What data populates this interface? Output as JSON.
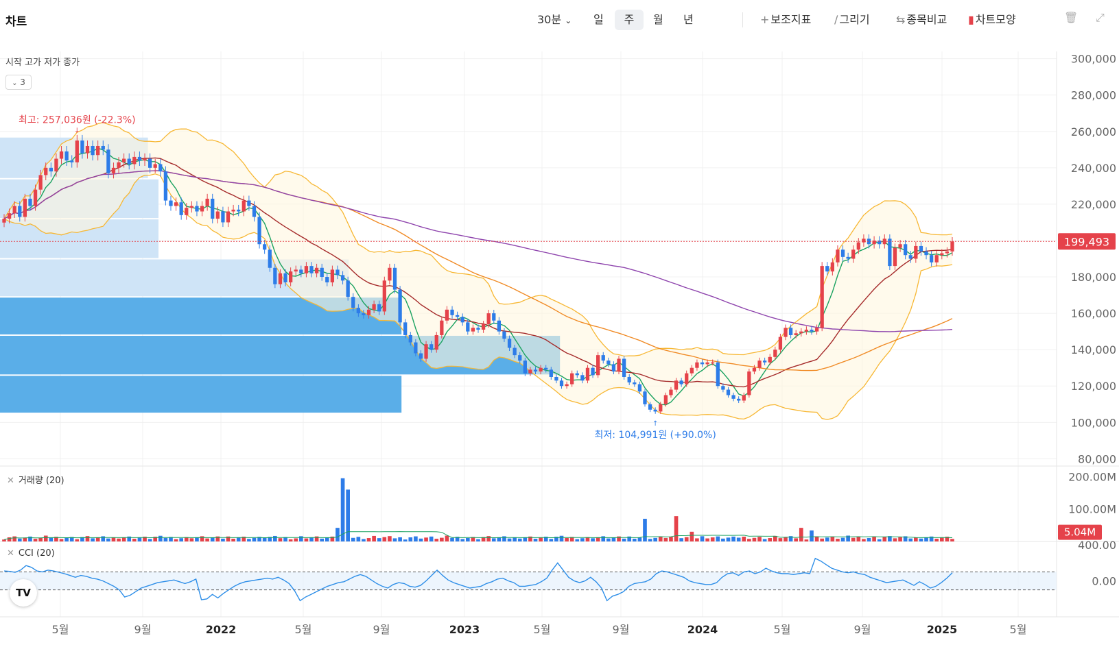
{
  "header": {
    "title": "차트",
    "interval": "30분",
    "periods": [
      "일",
      "주",
      "월",
      "년"
    ],
    "active_period": "주",
    "tools": [
      {
        "icon": "plus-icon",
        "label": "보조지표"
      },
      {
        "icon": "pencil-icon",
        "label": "그리기"
      },
      {
        "icon": "compare-arrows-icon",
        "label": "종목비교"
      },
      {
        "icon": "candle-style-icon",
        "label": "차트모양"
      }
    ]
  },
  "legend": {
    "ohlc_label": "시작 고가 저가 종가",
    "indicator_count": "3"
  },
  "chart_data": [
    {
      "type": "candlestick",
      "title": "",
      "ylim": [
        76000,
        304000
      ],
      "y_ticks": [
        "300,000",
        "280,000",
        "260,000",
        "240,000",
        "220,000",
        "200,000",
        "180,000",
        "160,000",
        "140,000",
        "120,000",
        "100,000",
        "80,000"
      ],
      "x_ticks": [
        "5월",
        "9월",
        "2022",
        "5월",
        "9월",
        "2023",
        "5월",
        "9월",
        "2024",
        "5월",
        "9월",
        "2025",
        "5월"
      ],
      "x_range": [
        "2021-01",
        "2025-06"
      ],
      "last_price": "199,493",
      "high_annotation": "최고: 257,036원 (-22.3%)",
      "low_annotation": "최저: 104,991원 (+90.0%)",
      "closes": [
        212000,
        215000,
        219000,
        213000,
        223000,
        219000,
        228000,
        236000,
        240000,
        238000,
        245000,
        249000,
        244000,
        243000,
        255000,
        248000,
        252000,
        247000,
        252000,
        250000,
        237000,
        240000,
        243000,
        245000,
        242000,
        246000,
        244000,
        245000,
        240000,
        242000,
        238000,
        222000,
        219000,
        221000,
        214000,
        218000,
        219000,
        216000,
        219000,
        223000,
        212000,
        216000,
        210000,
        216000,
        217000,
        216000,
        222000,
        219000,
        213000,
        198000,
        195000,
        185000,
        176000,
        182000,
        177000,
        183000,
        184000,
        182000,
        186000,
        182000,
        185000,
        180000,
        177000,
        184000,
        181000,
        178000,
        169000,
        163000,
        160000,
        159000,
        162000,
        165000,
        161000,
        178000,
        185000,
        173000,
        155000,
        148000,
        144000,
        138000,
        135000,
        143000,
        140000,
        148000,
        156000,
        162000,
        159000,
        158000,
        155000,
        150000,
        152000,
        151000,
        154000,
        160000,
        156000,
        150000,
        146000,
        141000,
        137000,
        134000,
        127000,
        129000,
        128000,
        130000,
        129000,
        125000,
        123000,
        120000,
        121000,
        127000,
        126000,
        123000,
        130000,
        126000,
        137000,
        134000,
        132000,
        128000,
        135000,
        125000,
        122000,
        121000,
        117000,
        110000,
        107000,
        106000,
        110000,
        115000,
        118000,
        123000,
        121000,
        127000,
        130000,
        133000,
        132000,
        133000,
        133000,
        120000,
        118000,
        115000,
        113000,
        112000,
        115000,
        128000,
        130000,
        134000,
        133000,
        136000,
        140000,
        147000,
        152000,
        148000,
        149000,
        150000,
        151000,
        150000,
        152000,
        186000,
        183000,
        188000,
        195000,
        191000,
        190000,
        195000,
        199000,
        201000,
        198000,
        200000,
        198000,
        201000,
        186000,
        196000,
        198000,
        192000,
        190000,
        197000,
        194000,
        192000,
        188000,
        192000,
        193000,
        194000,
        199493
      ]
    },
    {
      "type": "bar",
      "title": "거래량 (20)",
      "ylim": [
        0,
        220
      ],
      "y_ticks": [
        "200.00M",
        "100.00M"
      ],
      "last_value": "5.04M",
      "spikes": [
        {
          "pos": 0.357,
          "value": 195
        },
        {
          "pos": 0.364,
          "value": 160
        },
        {
          "pos": 0.35,
          "value": 42
        },
        {
          "pos": 0.678,
          "value": 70
        },
        {
          "pos": 0.71,
          "value": 78
        },
        {
          "pos": 0.725,
          "value": 30
        },
        {
          "pos": 0.84,
          "value": 42
        },
        {
          "pos": 0.85,
          "value": 34
        }
      ]
    },
    {
      "type": "line",
      "title": "CCI (20)",
      "ylim": [
        -400,
        400
      ],
      "y_ticks": [
        "400.00",
        "0.00"
      ],
      "reference_lines": [
        100,
        -100
      ],
      "values": [
        110,
        105,
        95,
        120,
        170,
        150,
        110,
        100,
        120,
        110,
        95,
        80,
        60,
        40,
        60,
        50,
        30,
        20,
        0,
        -30,
        -60,
        -100,
        -180,
        -160,
        -120,
        -80,
        -60,
        -40,
        -20,
        -10,
        0,
        10,
        -10,
        -30,
        -10,
        20,
        -210,
        -200,
        -150,
        -190,
        -140,
        -100,
        -60,
        -30,
        -10,
        0,
        10,
        20,
        30,
        20,
        40,
        10,
        -30,
        -110,
        -220,
        -180,
        -150,
        -120,
        -90,
        -60,
        -40,
        -20,
        -10,
        20,
        50,
        70,
        50,
        10,
        -30,
        -60,
        -80,
        -40,
        -20,
        -30,
        -60,
        -70,
        -50,
        0,
        60,
        120,
        60,
        10,
        -20,
        -40,
        -60,
        -80,
        -70,
        -60,
        -30,
        -10,
        20,
        30,
        0,
        -20,
        -60,
        -60,
        -50,
        -40,
        -10,
        30,
        120,
        200,
        120,
        40,
        0,
        -20,
        0,
        40,
        -10,
        -80,
        -220,
        -170,
        -150,
        -120,
        -60,
        -30,
        -20,
        -10,
        20,
        80,
        110,
        100,
        80,
        60,
        40,
        0,
        -20,
        -30,
        -40,
        -40,
        -20,
        40,
        80,
        90,
        60,
        100,
        110,
        80,
        100,
        140,
        110,
        90,
        80,
        80,
        70,
        80,
        90,
        80,
        250,
        220,
        180,
        140,
        120,
        100,
        90,
        100,
        80,
        70,
        40,
        20,
        0,
        -20,
        -10,
        0,
        10,
        -20,
        -50,
        -10,
        -40,
        -80,
        -60,
        -20,
        30,
        90
      ]
    }
  ]
}
